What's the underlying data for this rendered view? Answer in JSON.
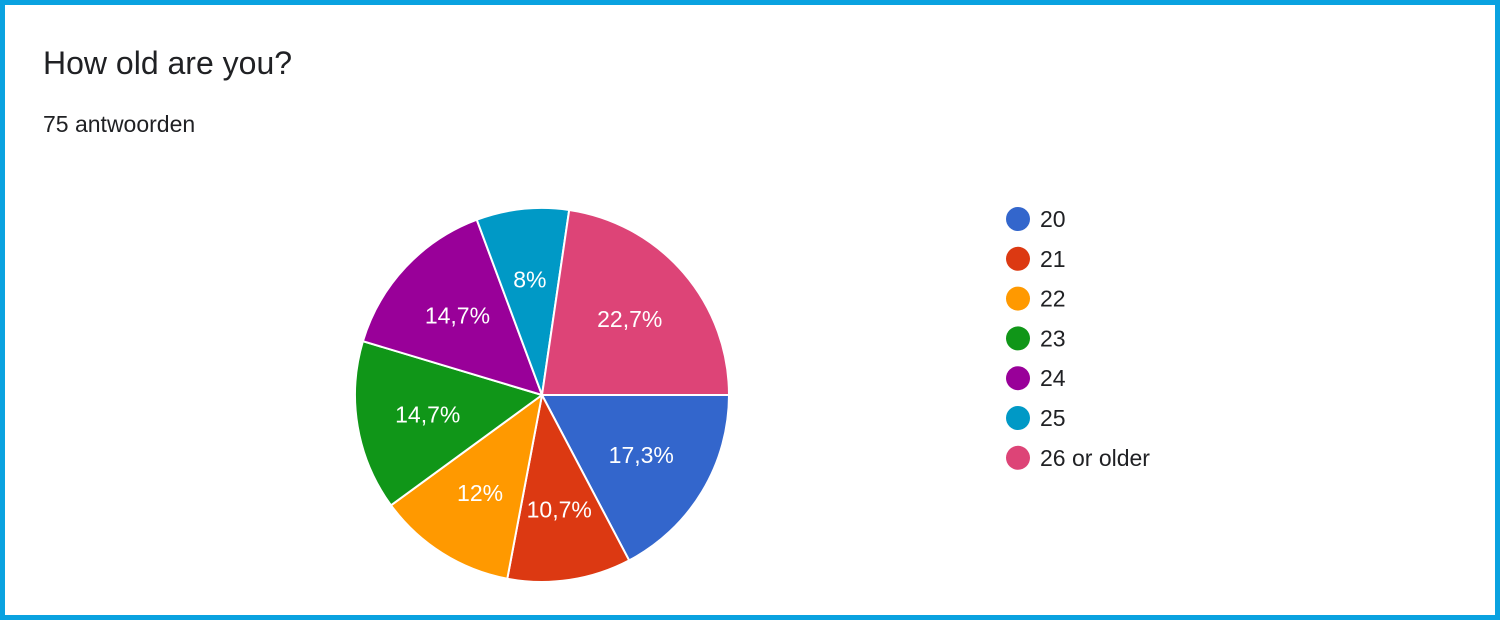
{
  "header": {
    "title": "How old are you?",
    "subtitle": "75 antwoorden"
  },
  "chart_data": {
    "type": "pie",
    "title": "How old are you?",
    "subtitle": "75 antwoorden",
    "legend_position": "right",
    "slices": [
      {
        "name": "20",
        "value": 17.3,
        "label": "17,3%",
        "color": "#3366cc"
      },
      {
        "name": "21",
        "value": 10.7,
        "label": "10,7%",
        "color": "#dc3912"
      },
      {
        "name": "22",
        "value": 12.0,
        "label": "12%",
        "color": "#ff9900"
      },
      {
        "name": "23",
        "value": 14.7,
        "label": "14,7%",
        "color": "#109618"
      },
      {
        "name": "24",
        "value": 14.7,
        "label": "14,7%",
        "color": "#990099"
      },
      {
        "name": "25",
        "value": 8.0,
        "label": "8%",
        "color": "#0099c6"
      },
      {
        "name": "26 or older",
        "value": 22.7,
        "label": "22,7%",
        "color": "#dd4477"
      }
    ]
  }
}
